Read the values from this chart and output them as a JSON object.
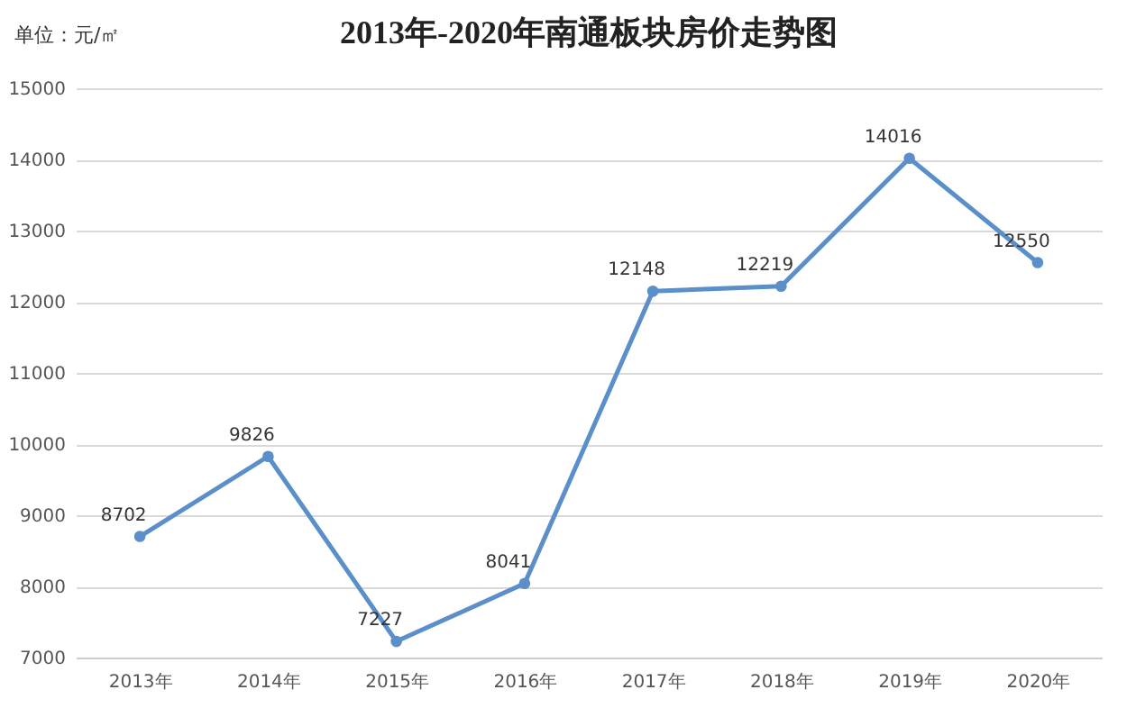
{
  "chart_data": {
    "type": "line",
    "title": "2013年-2020年南通板块房价走势图",
    "annotations": [
      "单位：元/㎡"
    ],
    "categories": [
      "2013年",
      "2014年",
      "2015年",
      "2016年",
      "2017年",
      "2018年",
      "2019年",
      "2020年"
    ],
    "series": [
      {
        "color": "#5b8fc9",
        "values": [
          8702,
          9826,
          7227,
          8041,
          12148,
          12219,
          14016,
          12550
        ]
      }
    ],
    "ylim": [
      7000,
      15000
    ],
    "yticks": [
      7000,
      8000,
      9000,
      10000,
      11000,
      12000,
      13000,
      14000,
      15000
    ],
    "grid": "y",
    "marker": "circle",
    "line_style": "solid",
    "data_labels": true,
    "legend": false
  }
}
